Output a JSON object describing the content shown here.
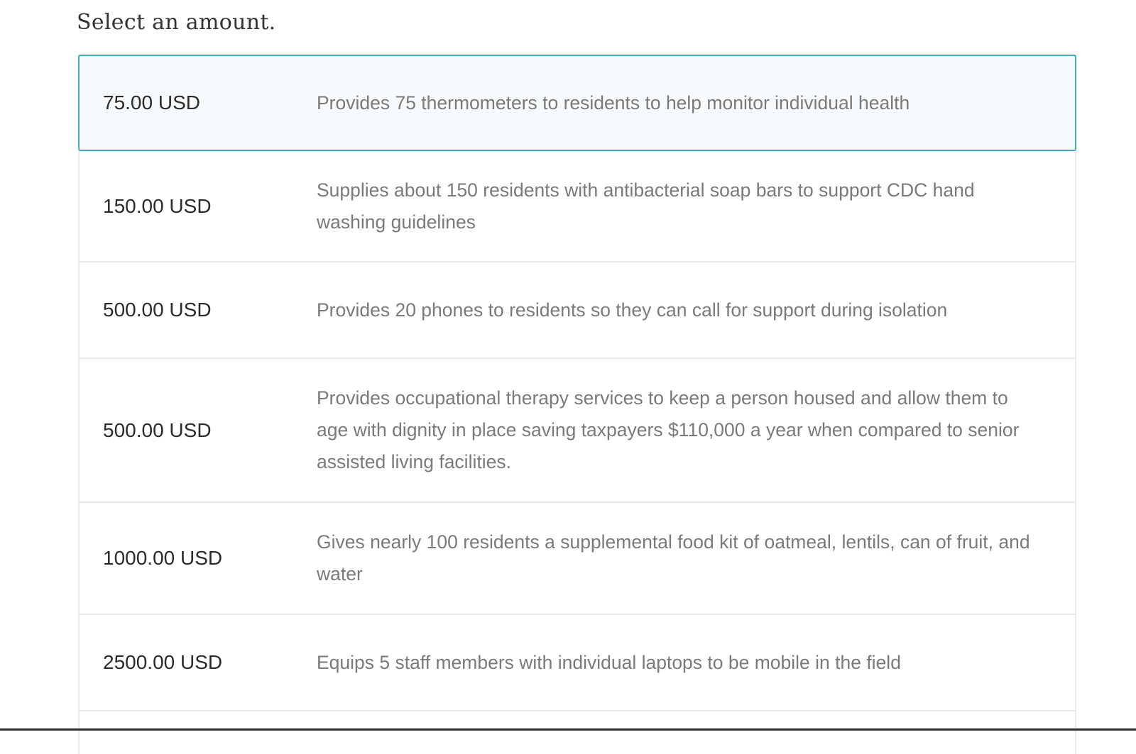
{
  "heading": "Select an amount.",
  "options": [
    {
      "amount": "75.00 USD",
      "description": "Provides 75 thermometers to residents to help monitor individual health",
      "selected": true
    },
    {
      "amount": "150.00 USD",
      "description": "Supplies about 150 residents with antibacterial soap bars to support CDC hand washing guidelines",
      "selected": false
    },
    {
      "amount": "500.00 USD",
      "description": "Provides 20 phones to residents so they can call for support during isolation",
      "selected": false
    },
    {
      "amount": "500.00 USD",
      "description": "Provides occupational therapy services to keep a person housed and allow them to age with dignity in place saving taxpayers $110,000 a year when compared to senior assisted living facilities.",
      "selected": false
    },
    {
      "amount": "1000.00 USD",
      "description": "Gives nearly 100 residents a supplemental food kit of oatmeal, lentils, can of fruit, and water",
      "selected": false
    },
    {
      "amount": "2500.00 USD",
      "description": "Equips 5 staff members with individual laptops to be mobile in the field",
      "selected": false
    }
  ],
  "colors": {
    "selected_border": "#4aa7b8",
    "selected_bg": "#f7fafc"
  }
}
